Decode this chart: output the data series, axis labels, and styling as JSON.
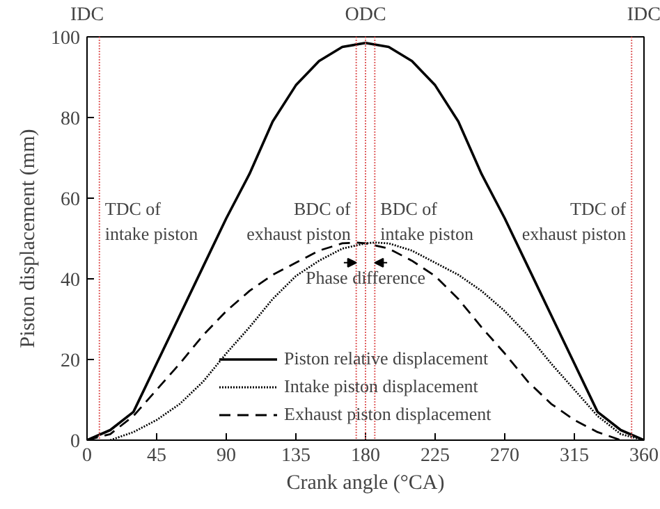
{
  "chart_data": {
    "type": "line",
    "xlabel": "Crank angle (°CA)",
    "ylabel": "Piston displacement (mm)",
    "xlim": [
      0,
      360
    ],
    "ylim": [
      0,
      100
    ],
    "xticks": [
      0,
      45,
      90,
      135,
      180,
      225,
      270,
      315,
      360
    ],
    "yticks": [
      0,
      20,
      40,
      60,
      80,
      100
    ],
    "grid": false,
    "legend": "bottom",
    "marker": "none",
    "series": [
      {
        "name": "Piston relative displacement",
        "color": "#000000",
        "line_style": "solid",
        "x": [
          0,
          15,
          30,
          45,
          60,
          75,
          90,
          105,
          120,
          135,
          150,
          165,
          180,
          195,
          210,
          225,
          240,
          255,
          270,
          285,
          300,
          315,
          330,
          345,
          360
        ],
        "values": [
          0,
          2.5,
          7,
          19,
          31,
          43,
          55,
          66,
          79,
          88,
          94,
          97.5,
          98.5,
          97.5,
          94,
          88,
          79,
          66,
          55,
          43,
          31,
          19,
          7,
          2.5,
          0
        ]
      },
      {
        "name": "Intake piston displacement",
        "color": "#000000",
        "line_style": "dotted",
        "x": [
          15,
          30,
          45,
          60,
          75,
          90,
          105,
          120,
          135,
          150,
          165,
          180,
          186,
          195,
          210,
          225,
          240,
          255,
          270,
          285,
          300,
          315,
          330,
          345,
          360
        ],
        "values": [
          0,
          2,
          5,
          9,
          14.5,
          21.5,
          28,
          35,
          40.7,
          44.5,
          47.5,
          48.8,
          49,
          48.8,
          47,
          44,
          41,
          37,
          32,
          26,
          19,
          12.5,
          6,
          1.5,
          0
        ]
      },
      {
        "name": "Exhaust piston displacement",
        "color": "#000000",
        "line_style": "dashed",
        "x": [
          0,
          15,
          30,
          45,
          60,
          75,
          90,
          105,
          120,
          135,
          150,
          165,
          174,
          180,
          195,
          210,
          225,
          240,
          255,
          270,
          285,
          300,
          315,
          330,
          345
        ],
        "values": [
          0,
          1.5,
          6,
          12.5,
          19,
          26,
          32,
          37,
          41,
          44,
          47,
          48.8,
          49,
          48.8,
          47.5,
          44.5,
          40.7,
          35,
          28,
          21.5,
          14.5,
          9,
          5,
          2,
          0
        ]
      }
    ],
    "ref_lines": [
      {
        "axis": "x",
        "value": 8,
        "label": "TDC of\nintake piston",
        "color": "#e06060",
        "line_style": "dotted"
      },
      {
        "axis": "x",
        "value": 174,
        "label": "BDC of\nexhaust piston",
        "color": "#e06060",
        "line_style": "dotted"
      },
      {
        "axis": "x",
        "value": 180,
        "label": "ODC",
        "color": "#e06060",
        "line_style": "dotted"
      },
      {
        "axis": "x",
        "value": 186,
        "label": "BDC of\nintake piston",
        "color": "#e06060",
        "line_style": "dotted"
      },
      {
        "axis": "x",
        "value": 352,
        "label": "TDC of\nexhaust piston",
        "color": "#e06060",
        "line_style": "dotted"
      }
    ],
    "annotations": [
      "IDC",
      "IDC",
      "Phase difference"
    ]
  }
}
